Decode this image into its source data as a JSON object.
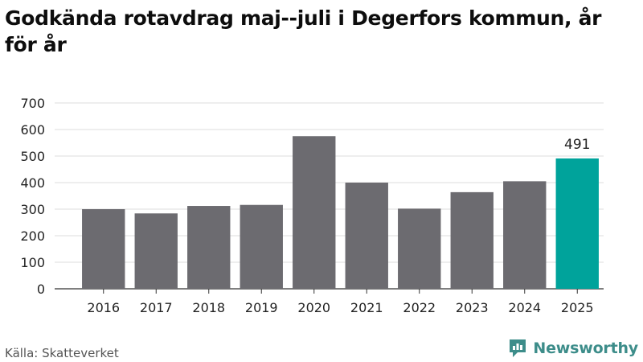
{
  "title": "Godkända rotavdrag maj--juli i Degerfors kommun, år för år",
  "source": "Källa: Skatteverket",
  "brand": {
    "name": "Newsworthy",
    "icon": "newsworthy-logo-icon",
    "color": "#3d8d8a"
  },
  "colors": {
    "bar": "#6c6b70",
    "highlight": "#00a39b",
    "grid": "#dddddd",
    "axis": "#333333"
  },
  "chart_data": {
    "type": "bar",
    "title": "Godkända rotavdrag maj--juli i Degerfors kommun, år för år",
    "xlabel": "",
    "ylabel": "",
    "categories": [
      "2016",
      "2017",
      "2018",
      "2019",
      "2020",
      "2021",
      "2022",
      "2023",
      "2024",
      "2025"
    ],
    "values": [
      300,
      284,
      312,
      316,
      575,
      400,
      302,
      364,
      405,
      491
    ],
    "ylim": [
      0,
      700
    ],
    "yticks": [
      "0",
      "100",
      "200",
      "300",
      "400",
      "500",
      "600",
      "700"
    ],
    "grid": true,
    "highlight_category": "2025",
    "data_labels": [
      {
        "category": "2025",
        "text": "491"
      }
    ]
  }
}
